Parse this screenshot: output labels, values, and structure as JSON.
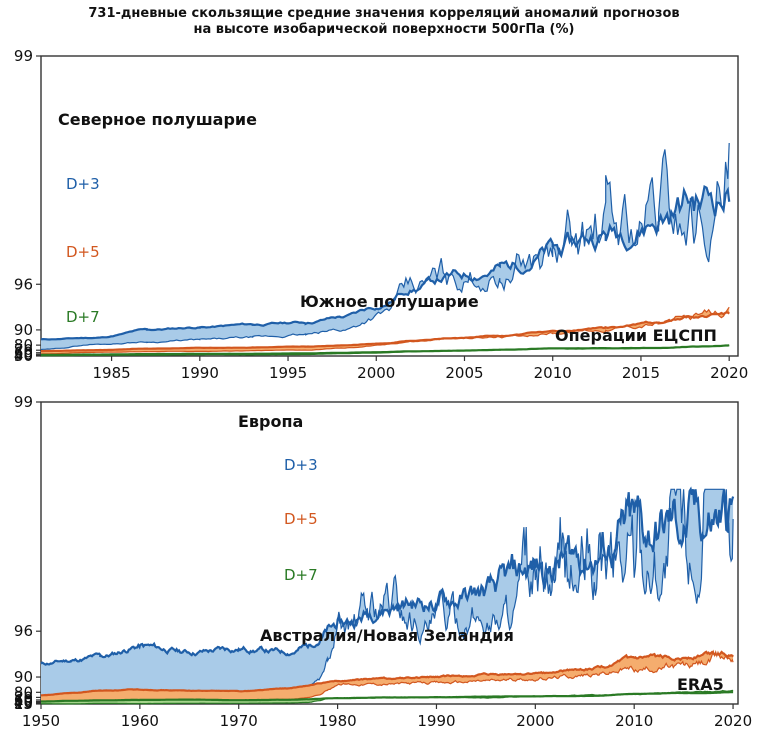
{
  "title": {
    "line1": "731-дневные скользящие средние значения корреляций аномалий прогнозов",
    "line2": "на высоте изобарической поверхности 500гПа (%)"
  },
  "colors": {
    "d3_line": "#1f5fa8",
    "d3_fill": "#a9cbe8",
    "d5_line": "#d2571f",
    "d5_fill": "#f5ad6e",
    "d7_line": "#2a7a25",
    "d7_fill": "#a5d48c"
  },
  "chart_data": [
    {
      "type": "area",
      "title": "",
      "annotation": "Операции ЕЦСПП",
      "region_labels": [
        "Северное полушарие",
        "Южное полушарие"
      ],
      "y_scale": "reciprocal of (100 - value)",
      "ylim": [
        30,
        99
      ],
      "yticks": [
        "30",
        "40",
        "50",
        "60",
        "70",
        "80",
        "90",
        "96",
        "99"
      ],
      "xlim": [
        1981,
        2020.5
      ],
      "xticks": [
        "1985",
        "1990",
        "1995",
        "2000",
        "2005",
        "2010",
        "2015",
        "2020"
      ],
      "x": [
        1981.0,
        1984.0,
        1987.0,
        1990.0,
        1993.0,
        1996.0,
        1998.0,
        2000.0,
        2002.0,
        2004.0,
        2007.0,
        2010.0,
        2013.0,
        2016.0,
        2018.0,
        2020.0
      ],
      "series": [
        {
          "name": "D+3",
          "nh": [
            85.5,
            86.5,
            90.0,
            90.8,
            91.5,
            92.0,
            93.0,
            94.3,
            95.8,
            96.3,
            96.7,
            97.2,
            97.6,
            97.9,
            98.1,
            98.2
          ],
          "sh": [
            72.0,
            81.0,
            83.5,
            85.0,
            86.5,
            88.0,
            90.0,
            93.2,
            95.5,
            96.2,
            96.6,
            97.1,
            97.5,
            97.8,
            98.0,
            98.2
          ]
        },
        {
          "name": "D+5",
          "nh": [
            67.0,
            70.0,
            74.0,
            75.5,
            76.5,
            78.0,
            79.5,
            81.5,
            84.5,
            86.0,
            87.5,
            89.5,
            90.5,
            92.0,
            93.0,
            93.5
          ],
          "sh": [
            52.0,
            62.0,
            65.0,
            66.5,
            68.5,
            70.5,
            75.0,
            79.5,
            84.0,
            85.5,
            87.0,
            89.0,
            90.2,
            91.8,
            92.8,
            93.5
          ]
        },
        {
          "name": "D+7",
          "nh": [
            45.0,
            47.5,
            51.5,
            53.0,
            54.0,
            56.5,
            59.5,
            62.5,
            66.0,
            68.0,
            71.0,
            74.5,
            75.0,
            75.5,
            78.0,
            79.5
          ],
          "sh": [
            33.0,
            39.0,
            42.0,
            46.0,
            45.0,
            48.0,
            54.0,
            59.0,
            64.5,
            67.5,
            70.5,
            73.5,
            74.5,
            75.0,
            77.5,
            79.0
          ]
        }
      ]
    },
    {
      "type": "area",
      "title": "",
      "annotation": "ERA5",
      "region_labels": [
        "Европа",
        "Австралия/Новая Зеландия"
      ],
      "y_scale": "reciprocal of (100 - value)",
      "ylim": [
        15,
        99
      ],
      "yticks": [
        "15",
        "25",
        "40",
        "50",
        "60",
        "70",
        "80",
        "90",
        "96",
        "99"
      ],
      "xlim": [
        1950,
        2020.5
      ],
      "xticks": [
        "1950",
        "1960",
        "1970",
        "1980",
        "1990",
        "2000",
        "2010",
        "2020"
      ],
      "x": [
        1950.0,
        1953.0,
        1956.0,
        1960.0,
        1965.0,
        1970.0,
        1975.0,
        1977.0,
        1978.0,
        1979.0,
        1980.0,
        1985.0,
        1990.0,
        1995.0,
        2000.0,
        2005.0,
        2010.0,
        2015.0,
        2020.0
      ],
      "series": [
        {
          "name": "D+3",
          "eu": [
            93.0,
            93.5,
            94.0,
            95.0,
            94.5,
            94.8,
            94.5,
            95.0,
            95.5,
            96.0,
            96.3,
            97.0,
            97.1,
            97.3,
            97.8,
            98.0,
            98.2,
            98.3,
            98.4
          ],
          "anz": [
            75.0,
            77.0,
            79.0,
            80.0,
            80.0,
            80.5,
            82.0,
            85.0,
            89.0,
            93.5,
            96.0,
            97.0,
            96.2,
            96.5,
            97.2,
            97.6,
            98.0,
            98.1,
            98.3
          ]
        },
        {
          "name": "D+5",
          "eu": [
            75.0,
            79.0,
            82.0,
            83.0,
            82.0,
            81.5,
            84.0,
            86.0,
            87.0,
            88.0,
            88.5,
            89.5,
            90.0,
            90.5,
            91.0,
            92.0,
            93.5,
            94.0,
            94.5
          ],
          "anz": [
            50.0,
            55.0,
            58.0,
            60.0,
            58.0,
            58.0,
            63.0,
            69.0,
            76.0,
            83.0,
            87.0,
            87.0,
            87.5,
            88.5,
            89.5,
            90.5,
            92.0,
            92.5,
            94.0
          ]
        },
        {
          "name": "D+7",
          "eu": [
            50.0,
            55.0,
            58.0,
            60.0,
            62.0,
            58.5,
            61.0,
            63.0,
            65.0,
            67.0,
            67.5,
            70.0,
            70.5,
            72.0,
            73.0,
            73.5,
            77.5,
            79.0,
            80.0
          ],
          "anz": [
            22.0,
            18.0,
            28.0,
            24.0,
            29.0,
            29.0,
            34.0,
            40.0,
            55.0,
            66.0,
            68.5,
            69.0,
            69.0,
            68.5,
            72.5,
            75.0,
            77.5,
            80.0,
            82.0
          ]
        }
      ]
    }
  ],
  "labels": {
    "top": {
      "nh": "Северное полушарие",
      "sh": "Южное полушарие",
      "ops": "Операции ЕЦСПП",
      "d3": "D+3",
      "d5": "D+5",
      "d7": "D+7"
    },
    "bottom": {
      "eu": "Европа",
      "anz": "Австралия/Новая Зеландия",
      "era": "ERA5",
      "d3": "D+3",
      "d5": "D+5",
      "d7": "D+7"
    }
  }
}
